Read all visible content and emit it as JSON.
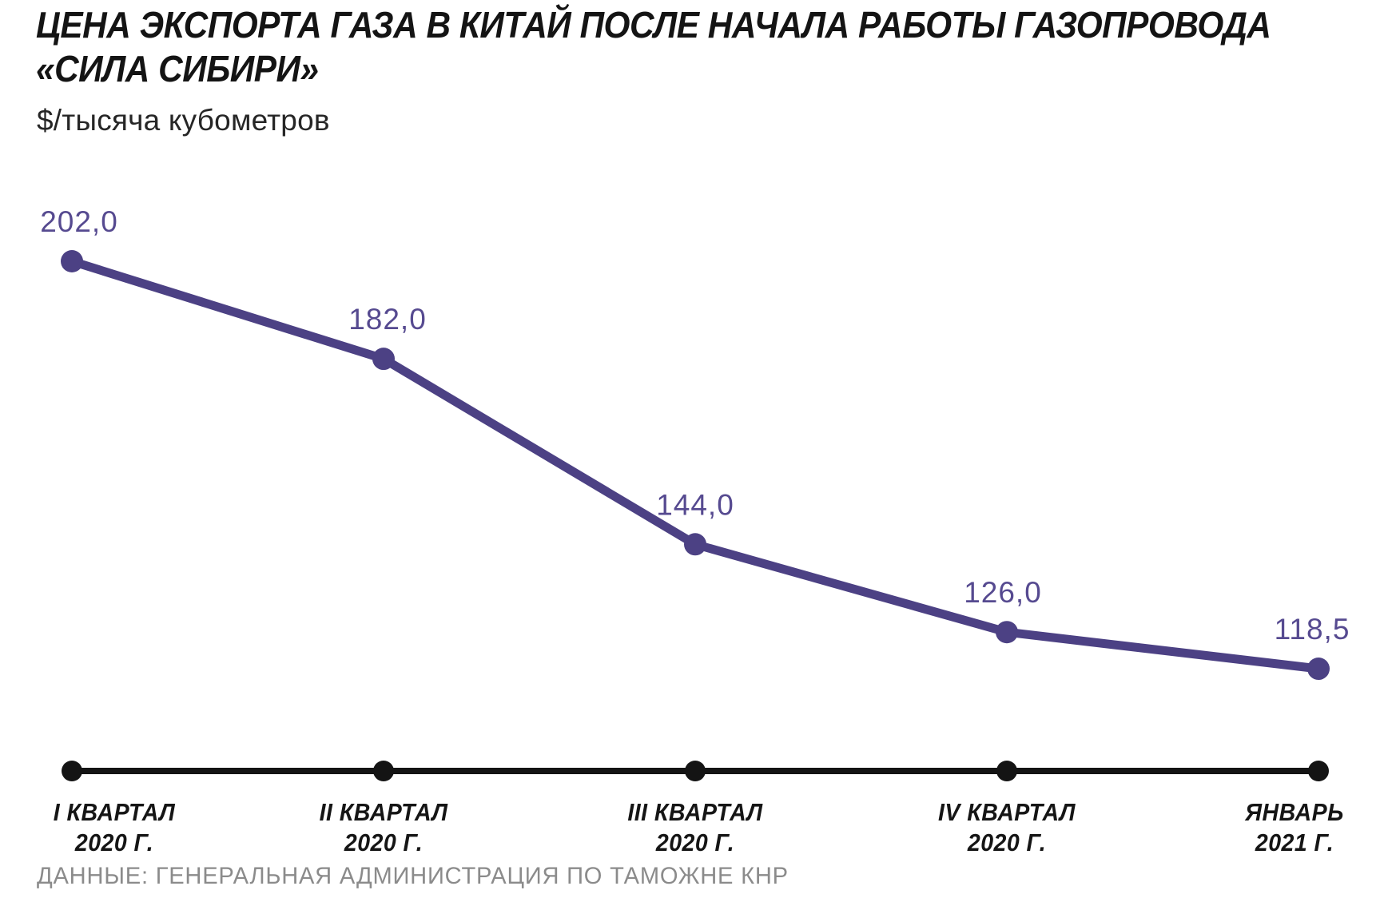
{
  "title": {
    "line1": "ЦЕНА ЭКСПОРТА ГАЗА В КИТАЙ ПОСЛЕ НАЧАЛА РАБОТЫ ГАЗОПРОВОДА",
    "line2": "«СИЛА СИБИРИ»"
  },
  "unit_label": "$/тысяча кубометров",
  "source": "ДАННЫЕ: ГЕНЕРАЛЬНАЯ АДМИНИСТРАЦИЯ ПО ТАМОЖНЕ КНР",
  "colors": {
    "accent": "#4c4184",
    "accent_text": "#564a90",
    "axis": "#141414",
    "title_text": "#141414",
    "source_text": "#8b8b8b"
  },
  "chart_data": {
    "type": "line",
    "title": "ЦЕНА ЭКСПОРТА ГАЗА В КИТАЙ ПОСЛЕ НАЧАЛА РАБОТЫ ГАЗОПРОВОДА «СИЛА СИБИРИ»",
    "ylabel": "$/тысяча кубометров",
    "xlabel": "",
    "categories": [
      "I КВАРТАЛ 2020 Г.",
      "II КВАРТАЛ 2020 Г.",
      "III КВАРТАЛ 2020 Г.",
      "IV КВАРТАЛ 2020 Г.",
      "ЯНВАРЬ 2021 Г."
    ],
    "category_lines": [
      [
        "I КВАРТАЛ",
        "2020 Г."
      ],
      [
        "II КВАРТАЛ",
        "2020 Г."
      ],
      [
        "III КВАРТАЛ",
        "2020 Г."
      ],
      [
        "IV КВАРТАЛ",
        "2020 Г."
      ],
      [
        "ЯНВАРЬ",
        "2021 Г."
      ]
    ],
    "values": [
      202.0,
      182.0,
      144.0,
      126.0,
      118.5
    ],
    "point_labels": [
      "202,0",
      "182,0",
      "144,0",
      "126,0",
      "118,5"
    ],
    "ylim": [
      110,
      210
    ],
    "grid": false,
    "legend": false,
    "markers": true,
    "annotation_source": "ДАННЫЕ: ГЕНЕРАЛЬНАЯ АДМИНИСТРАЦИЯ ПО ТАМОЖНЕ КНР"
  }
}
